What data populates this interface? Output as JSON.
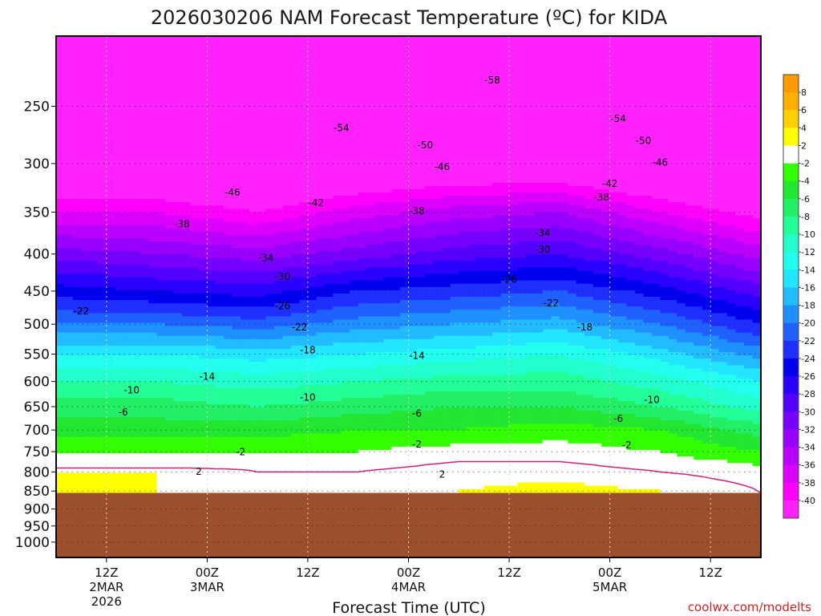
{
  "colors": {
    "ground": "#9c4f2c",
    "freezing_line": "#d0207a",
    "contour": "#000000",
    "credit": "#cc2222"
  },
  "credit": "coolwx.com/modelts",
  "chart_data": {
    "type": "heatmap",
    "title": "2026030206 NAM Forecast Temperature (ºC) for KIDA",
    "xlabel": "Forecast Time (UTC)",
    "ylabel": "",
    "y_scale": "log",
    "y_ticks": [
      250,
      300,
      350,
      400,
      450,
      500,
      550,
      600,
      650,
      700,
      750,
      800,
      850,
      900,
      950,
      1000
    ],
    "y_range_hpa": [
      1050,
      200
    ],
    "ground_top_hpa": 855,
    "x_ticks": [
      {
        "hours": 6,
        "lines": [
          "12Z",
          "2MAR",
          "2026"
        ]
      },
      {
        "hours": 18,
        "lines": [
          "00Z",
          "3MAR"
        ]
      },
      {
        "hours": 30,
        "lines": [
          "12Z"
        ]
      },
      {
        "hours": 42,
        "lines": [
          "00Z",
          "4MAR"
        ]
      },
      {
        "hours": 54,
        "lines": [
          "12Z"
        ]
      },
      {
        "hours": 66,
        "lines": [
          "00Z",
          "5MAR"
        ]
      },
      {
        "hours": 78,
        "lines": [
          "12Z"
        ]
      }
    ],
    "x_range_hours": [
      0,
      84
    ],
    "colorbar": {
      "labels": [
        "8",
        "6",
        "4",
        "2",
        "-2",
        "-4",
        "-6",
        "-8",
        "-10",
        "-12",
        "-14",
        "-16",
        "-18",
        "-20",
        "-22",
        "-24",
        "-26",
        "-28",
        "-30",
        "-32",
        "-34",
        "-36",
        "-38",
        "-40"
      ],
      "colors": [
        "#ff9900",
        "#ffb000",
        "#ffd000",
        "#ffff00",
        "#ffffff",
        "#33ff00",
        "#22e630",
        "#22ee66",
        "#22ff99",
        "#22ffcc",
        "#22ffee",
        "#22e5ff",
        "#22bbff",
        "#1f90ff",
        "#1f60ff",
        "#1f2fff",
        "#0000ee",
        "#2a00ff",
        "#5500ff",
        "#7700ff",
        "#9900ff",
        "#bb00ff",
        "#dd00ff",
        "#ff00ff",
        "#ff22ff"
      ]
    },
    "profiles": [
      {
        "hours": 0,
        "t_hpa": [
          [
            850,
            2
          ],
          [
            800,
            2
          ],
          [
            790,
            0
          ],
          [
            750,
            -2
          ],
          [
            700,
            -5
          ],
          [
            650,
            -7
          ],
          [
            600,
            -10
          ],
          [
            550,
            -14
          ],
          [
            500,
            -20
          ],
          [
            450,
            -25
          ],
          [
            400,
            -31
          ],
          [
            350,
            -38
          ],
          [
            300,
            -45
          ],
          [
            250,
            -53
          ],
          [
            200,
            -58
          ]
        ]
      },
      {
        "hours": 12,
        "t_hpa": [
          [
            850,
            2
          ],
          [
            800,
            2
          ],
          [
            790,
            0
          ],
          [
            750,
            -2
          ],
          [
            700,
            -5
          ],
          [
            650,
            -7
          ],
          [
            600,
            -10
          ],
          [
            550,
            -14
          ],
          [
            500,
            -20
          ],
          [
            450,
            -26
          ],
          [
            400,
            -32
          ],
          [
            350,
            -38
          ],
          [
            300,
            -46
          ],
          [
            250,
            -54
          ],
          [
            200,
            -58
          ]
        ]
      },
      {
        "hours": 24,
        "t_hpa": [
          [
            850,
            1
          ],
          [
            800,
            0
          ],
          [
            750,
            -2
          ],
          [
            700,
            -5
          ],
          [
            650,
            -8
          ],
          [
            600,
            -11
          ],
          [
            550,
            -15
          ],
          [
            500,
            -21
          ],
          [
            450,
            -27
          ],
          [
            400,
            -33
          ],
          [
            350,
            -40
          ],
          [
            300,
            -47
          ],
          [
            250,
            -54
          ],
          [
            200,
            -58
          ]
        ]
      },
      {
        "hours": 36,
        "t_hpa": [
          [
            850,
            1
          ],
          [
            800,
            0
          ],
          [
            750,
            -2
          ],
          [
            700,
            -4
          ],
          [
            650,
            -7
          ],
          [
            600,
            -10
          ],
          [
            550,
            -14
          ],
          [
            500,
            -19
          ],
          [
            450,
            -24
          ],
          [
            400,
            -31
          ],
          [
            350,
            -37
          ],
          [
            300,
            -45
          ],
          [
            250,
            -53
          ],
          [
            200,
            -58
          ]
        ]
      },
      {
        "hours": 48,
        "t_hpa": [
          [
            850,
            2
          ],
          [
            800,
            1
          ],
          [
            750,
            -1
          ],
          [
            700,
            -4
          ],
          [
            650,
            -6
          ],
          [
            600,
            -9
          ],
          [
            550,
            -13
          ],
          [
            500,
            -18
          ],
          [
            450,
            -23
          ],
          [
            400,
            -29
          ],
          [
            350,
            -35
          ],
          [
            300,
            -44
          ],
          [
            250,
            -52
          ],
          [
            200,
            -58
          ]
        ]
      },
      {
        "hours": 60,
        "t_hpa": [
          [
            850,
            3
          ],
          [
            800,
            1
          ],
          [
            750,
            -1
          ],
          [
            700,
            -3
          ],
          [
            650,
            -6
          ],
          [
            600,
            -9
          ],
          [
            550,
            -12
          ],
          [
            500,
            -17
          ],
          [
            450,
            -22
          ],
          [
            400,
            -28
          ],
          [
            350,
            -34
          ],
          [
            300,
            -44
          ],
          [
            250,
            -52
          ],
          [
            200,
            -58
          ]
        ]
      },
      {
        "hours": 72,
        "t_hpa": [
          [
            850,
            2
          ],
          [
            800,
            0
          ],
          [
            750,
            -2
          ],
          [
            700,
            -4
          ],
          [
            650,
            -8
          ],
          [
            600,
            -11
          ],
          [
            550,
            -15
          ],
          [
            500,
            -20
          ],
          [
            450,
            -25
          ],
          [
            400,
            -31
          ],
          [
            350,
            -38
          ],
          [
            300,
            -46
          ],
          [
            250,
            -53
          ],
          [
            200,
            -58
          ]
        ]
      },
      {
        "hours": 84,
        "t_hpa": [
          [
            850,
            0
          ],
          [
            800,
            -1
          ],
          [
            750,
            -4
          ],
          [
            700,
            -7
          ],
          [
            650,
            -11
          ],
          [
            600,
            -14
          ],
          [
            550,
            -19
          ],
          [
            500,
            -24
          ],
          [
            450,
            -29
          ],
          [
            400,
            -35
          ],
          [
            350,
            -41
          ],
          [
            300,
            -48
          ],
          [
            250,
            -54
          ],
          [
            200,
            -58
          ]
        ]
      }
    ],
    "contour_labels": [
      {
        "text": "-58",
        "hours": 52,
        "hpa": 230
      },
      {
        "text": "-54",
        "hours": 34,
        "hpa": 268
      },
      {
        "text": "-54",
        "hours": 67,
        "hpa": 260
      },
      {
        "text": "-50",
        "hours": 44,
        "hpa": 283
      },
      {
        "text": "-50",
        "hours": 70,
        "hpa": 279
      },
      {
        "text": "-46",
        "hours": 21,
        "hpa": 329
      },
      {
        "text": "-46",
        "hours": 46,
        "hpa": 303
      },
      {
        "text": "-46",
        "hours": 72,
        "hpa": 299
      },
      {
        "text": "-42",
        "hours": 31,
        "hpa": 340
      },
      {
        "text": "-42",
        "hours": 66,
        "hpa": 320
      },
      {
        "text": "-38",
        "hours": 15,
        "hpa": 364
      },
      {
        "text": "-38",
        "hours": 43,
        "hpa": 349
      },
      {
        "text": "-38",
        "hours": 65,
        "hpa": 334
      },
      {
        "text": "-34",
        "hours": 25,
        "hpa": 405
      },
      {
        "text": "-34",
        "hours": 58,
        "hpa": 374
      },
      {
        "text": "-30",
        "hours": 27,
        "hpa": 430
      },
      {
        "text": "-30",
        "hours": 58,
        "hpa": 394
      },
      {
        "text": "-26",
        "hours": 27,
        "hpa": 472
      },
      {
        "text": "-26",
        "hours": 54,
        "hpa": 434
      },
      {
        "text": "-22",
        "hours": 3,
        "hpa": 480
      },
      {
        "text": "-22",
        "hours": 29,
        "hpa": 505
      },
      {
        "text": "-22",
        "hours": 59,
        "hpa": 468
      },
      {
        "text": "-18",
        "hours": 30,
        "hpa": 543
      },
      {
        "text": "-18",
        "hours": 63,
        "hpa": 505
      },
      {
        "text": "-14",
        "hours": 18,
        "hpa": 591
      },
      {
        "text": "-14",
        "hours": 43,
        "hpa": 553
      },
      {
        "text": "-10",
        "hours": 9,
        "hpa": 617
      },
      {
        "text": "-10",
        "hours": 30,
        "hpa": 631
      },
      {
        "text": "-10",
        "hours": 71,
        "hpa": 636
      },
      {
        "text": "-6",
        "hours": 8,
        "hpa": 662
      },
      {
        "text": "-6",
        "hours": 43,
        "hpa": 664
      },
      {
        "text": "-6",
        "hours": 67,
        "hpa": 675
      },
      {
        "text": "-2",
        "hours": 22,
        "hpa": 751
      },
      {
        "text": "-2",
        "hours": 43,
        "hpa": 733
      },
      {
        "text": "-2",
        "hours": 68,
        "hpa": 735
      },
      {
        "text": "2",
        "hours": 17,
        "hpa": 799
      },
      {
        "text": "2",
        "hours": 46,
        "hpa": 806
      }
    ]
  }
}
